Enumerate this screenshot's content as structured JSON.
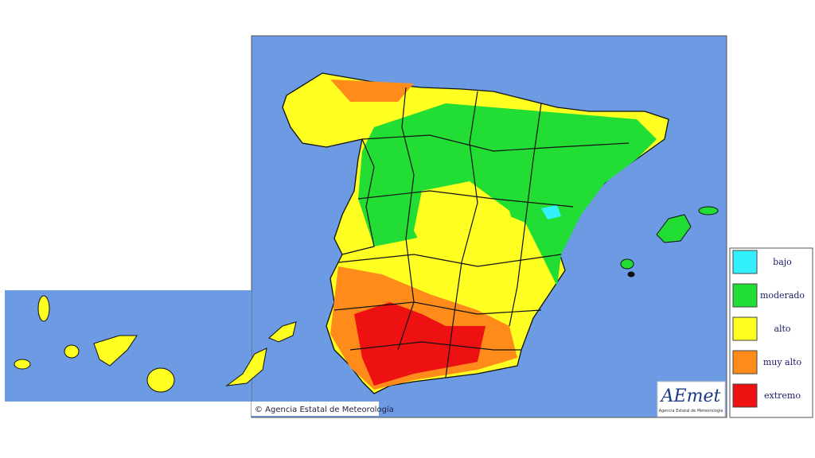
{
  "credit": "© Agencia Estatal de Meteorología",
  "logo": {
    "text": "AEmet",
    "subtitle": "Agencia Estatal de Meteorología"
  },
  "legend": {
    "items": [
      {
        "label": "bajo",
        "color": "#33f0ff"
      },
      {
        "label": "moderado",
        "color": "#22dd33"
      },
      {
        "label": "alto",
        "color": "#ffff22"
      },
      {
        "label": "muy alto",
        "color": "#ff8c1a"
      },
      {
        "label": "extremo",
        "color": "#ee1111"
      }
    ]
  }
}
